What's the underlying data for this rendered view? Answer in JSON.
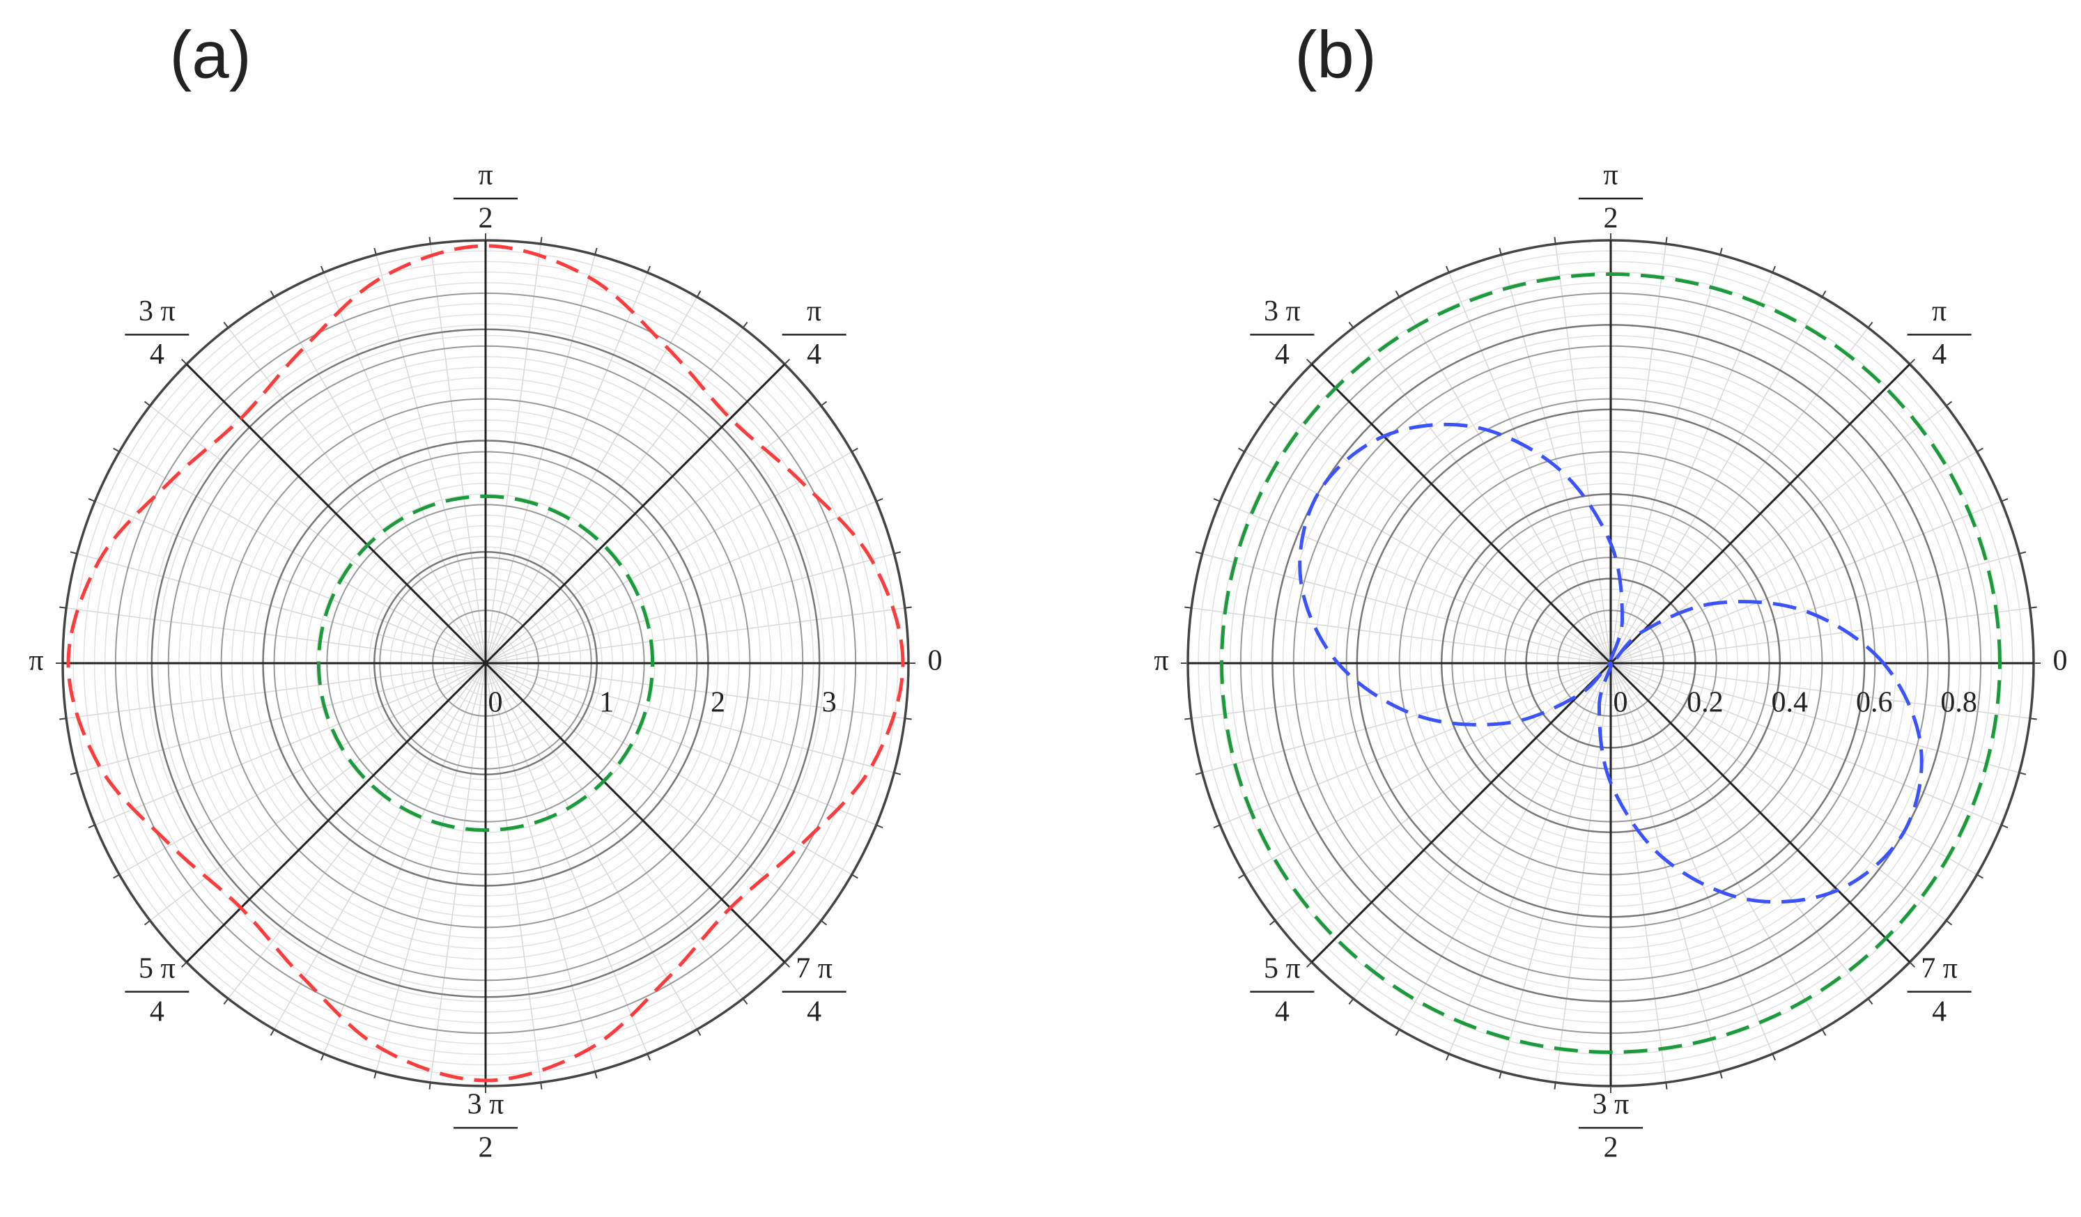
{
  "chart_data": [
    {
      "type": "polar",
      "label": "(a)",
      "theta": [
        0,
        0.2618,
        0.5236,
        0.7854,
        1.0472,
        1.309,
        1.5708,
        1.8326,
        2.0944,
        2.3562,
        2.618,
        2.8798,
        3.1416,
        3.4034,
        3.6652,
        3.927,
        4.1888,
        4.4506,
        4.7124,
        4.9742,
        5.236,
        5.4978,
        5.7596,
        6.0214
      ],
      "series": [
        {
          "color": "#ff3b3b",
          "linestyle": "dashed",
          "values": [
            3.75,
            3.59,
            3.27,
            3.11,
            3.27,
            3.59,
            3.75,
            3.59,
            3.27,
            3.11,
            3.27,
            3.59,
            3.75,
            3.59,
            3.27,
            3.11,
            3.27,
            3.59,
            3.75,
            3.59,
            3.27,
            3.11,
            3.27,
            3.59
          ]
        },
        {
          "color": "#1a9a3a",
          "linestyle": "dashed",
          "values": [
            1.5,
            1.5,
            1.5,
            1.5,
            1.5,
            1.5,
            1.5,
            1.5,
            1.5,
            1.5,
            1.5,
            1.5,
            1.5,
            1.5,
            1.5,
            1.5,
            1.5,
            1.5,
            1.5,
            1.5,
            1.5,
            1.5,
            1.5,
            1.5
          ]
        }
      ],
      "rlim": [
        0,
        3.8
      ],
      "rticks": [
        0,
        1,
        2,
        3
      ],
      "grid": true,
      "thetaticks": [
        0,
        {
          "value": 0.7854,
          "label": [
            "π",
            "4"
          ]
        },
        {
          "value": 1.5708,
          "label": [
            "π",
            "2"
          ]
        },
        {
          "value": 2.3562,
          "label": [
            "3 π",
            "4"
          ]
        },
        {
          "value": 3.1416,
          "label": "π"
        },
        {
          "value": 3.927,
          "label": [
            "5 π",
            "4"
          ]
        },
        {
          "value": 4.7124,
          "label": [
            "3 π",
            "2"
          ]
        },
        {
          "value": 5.4978,
          "label": [
            "7 π",
            "4"
          ]
        }
      ]
    },
    {
      "type": "polar",
      "label": "(b)",
      "theta": [
        0,
        0.2618,
        0.5236,
        0.7854,
        1.0472,
        1.309,
        1.5708,
        1.8326,
        2.0944,
        2.3562,
        2.618,
        2.8798,
        3.1416,
        3.4034,
        3.6652,
        3.927,
        4.1888,
        4.4506,
        4.7124,
        4.9742,
        5.236,
        5.4978,
        5.7596,
        6.0214
      ],
      "series": [
        {
          "color": "#3a52ff",
          "linestyle": "dashed",
          "values": [
            0.645,
            0.476,
            0.283,
            0.105,
            0,
            0.105,
            0.283,
            0.476,
            0.645,
            0.759,
            0.8,
            0.759,
            0.645,
            0.476,
            0.283,
            0.105,
            0,
            0.105,
            0.283,
            0.476,
            0.645,
            0.759,
            0.8,
            0.759
          ]
        },
        {
          "color": "#1a9a3a",
          "linestyle": "dashed",
          "values": [
            0.92,
            0.92,
            0.92,
            0.92,
            0.92,
            0.92,
            0.92,
            0.92,
            0.92,
            0.92,
            0.92,
            0.92,
            0.92,
            0.92,
            0.92,
            0.92,
            0.92,
            0.92,
            0.92,
            0.92,
            0.92,
            0.92,
            0.92,
            0.92
          ]
        }
      ],
      "rlim": [
        0,
        1.0
      ],
      "rticks": [
        0,
        0.2,
        0.4,
        0.6,
        0.8
      ],
      "grid": true,
      "thetaticks": [
        0,
        {
          "value": 0.7854,
          "label": [
            "π",
            "4"
          ]
        },
        {
          "value": 1.5708,
          "label": [
            "π",
            "2"
          ]
        },
        {
          "value": 2.3562,
          "label": [
            "3 π",
            "4"
          ]
        },
        {
          "value": 3.1416,
          "label": "π"
        },
        {
          "value": 3.927,
          "label": [
            "5 π",
            "4"
          ]
        },
        {
          "value": 4.7124,
          "label": [
            "3 π",
            "2"
          ]
        },
        {
          "value": 5.4978,
          "label": [
            "7 π",
            "4"
          ]
        }
      ]
    }
  ]
}
